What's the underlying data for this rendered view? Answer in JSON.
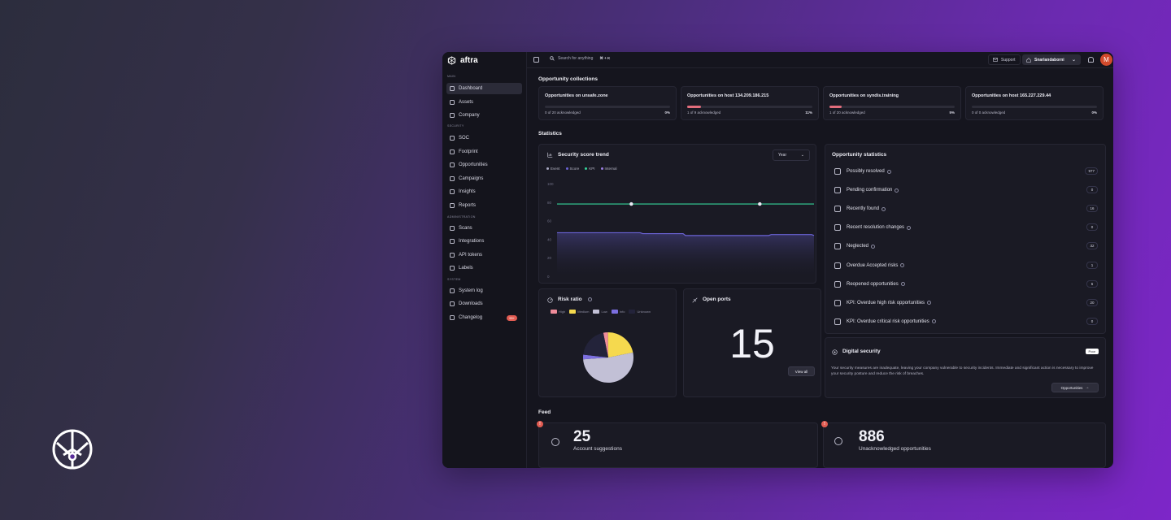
{
  "app": {
    "name": "aftra"
  },
  "colors": {
    "accent_red": "#e25c52",
    "kpi_green": "#34d399",
    "score_purple": "#6b63d6",
    "high": "#f08c9a",
    "medium": "#f5d94e",
    "low": "#c2c0d6",
    "info": "#7c6fe0"
  },
  "sidebar": {
    "sections": [
      {
        "label": "MAIN",
        "items": [
          {
            "label": "Dashboard",
            "icon": "dashboard-icon",
            "active": true
          },
          {
            "label": "Assets",
            "icon": "assets-icon"
          },
          {
            "label": "Company",
            "icon": "company-icon"
          }
        ]
      },
      {
        "label": "SECURITY",
        "items": [
          {
            "label": "SOC",
            "icon": "shield-icon"
          },
          {
            "label": "Footprint",
            "icon": "footprint-icon"
          },
          {
            "label": "Opportunities",
            "icon": "opportunities-icon"
          },
          {
            "label": "Campaigns",
            "icon": "campaigns-icon"
          },
          {
            "label": "Insights",
            "icon": "insights-icon"
          },
          {
            "label": "Reports",
            "icon": "reports-icon"
          }
        ]
      },
      {
        "label": "ADMINISTRATION",
        "items": [
          {
            "label": "Scans",
            "icon": "scans-icon"
          },
          {
            "label": "Integrations",
            "icon": "integrations-icon"
          },
          {
            "label": "API tokens",
            "icon": "key-icon"
          },
          {
            "label": "Labels",
            "icon": "label-icon"
          }
        ]
      },
      {
        "label": "SYSTEM",
        "items": [
          {
            "label": "System log",
            "icon": "log-icon"
          },
          {
            "label": "Downloads",
            "icon": "download-icon"
          },
          {
            "label": "Changelog",
            "icon": "changelog-icon",
            "badge": "99+"
          }
        ]
      }
    ]
  },
  "topbar": {
    "search_placeholder": "Search for anything",
    "shortcut": "⌘ + K",
    "support_label": "Support",
    "org_name": "Snarlandaborni",
    "avatar_initial": "M"
  },
  "collections": {
    "title": "Opportunity collections",
    "items": [
      {
        "title": "Opportunities on unsafe.zone",
        "ack": "0 of 20 acknowledged",
        "pct": "0%",
        "fill": 0
      },
      {
        "title": "Opportunities on host 134.209.186.215",
        "ack": "1 of 9 acknowledged",
        "pct": "11%",
        "fill": 0.11
      },
      {
        "title": "Opportunities on syndis.training",
        "ack": "1 of 20 acknowledged",
        "pct": "5%",
        "fill": 0.05
      },
      {
        "title": "Opportunities on host 165.227.229.44",
        "ack": "0 of 0 acknowledged",
        "pct": "0%",
        "fill": 0
      }
    ]
  },
  "statistics": {
    "title": "Statistics"
  },
  "score_trend": {
    "title": "Security score trend",
    "period": "Year",
    "legend": [
      "Event",
      "Score",
      "KPI",
      "Internal"
    ]
  },
  "chart_data": {
    "type": "line",
    "title": "Security score trend",
    "yticks": [
      "100",
      "80",
      "60",
      "40",
      "20",
      "0"
    ],
    "ylim": [
      0,
      100
    ],
    "series": [
      {
        "name": "KPI",
        "values": [
          78,
          78,
          78,
          78,
          78,
          78,
          78
        ]
      },
      {
        "name": "Score",
        "values": [
          47,
          47,
          46,
          44,
          44,
          45,
          44
        ]
      }
    ]
  },
  "opportunity_stats": {
    "title": "Opportunity statistics",
    "rows": [
      {
        "label": "Possibly resolved",
        "count": "977",
        "icon": "recycle-icon"
      },
      {
        "label": "Pending confirmation",
        "count": "0",
        "icon": "clock-icon"
      },
      {
        "label": "Recently found",
        "count": "16",
        "icon": "activity-icon"
      },
      {
        "label": "Recent resolution changes",
        "count": "0",
        "icon": "refresh-badge-icon"
      },
      {
        "label": "Neglected",
        "count": "32",
        "icon": "neglected-icon"
      },
      {
        "label": "Overdue Accepted risks",
        "count": "1",
        "icon": "warning-icon"
      },
      {
        "label": "Reopened opportunities",
        "count": "6",
        "icon": "reopen-icon"
      },
      {
        "label": "KPI: Overdue high risk opportunities",
        "count": "20",
        "icon": "kpi-high-icon"
      },
      {
        "label": "KPI: Overdue critical risk opportunities",
        "count": "0",
        "icon": "kpi-critical-icon"
      }
    ]
  },
  "risk_ratio": {
    "title": "Risk ratio",
    "legend": [
      "High",
      "Medium",
      "Low",
      "Info",
      "Unknown"
    ],
    "slices": [
      {
        "name": "High",
        "value": 3,
        "color": "#f08c9a"
      },
      {
        "name": "Medium",
        "value": 22,
        "color": "#f5d94e"
      },
      {
        "name": "Low",
        "value": 52,
        "color": "#c2c0d6"
      },
      {
        "name": "Info",
        "value": 3,
        "color": "#7c6fe0"
      },
      {
        "name": "Unknown",
        "value": 20,
        "color": "#23233a"
      }
    ]
  },
  "open_ports": {
    "title": "Open ports",
    "value": "15",
    "button": "View all"
  },
  "digital_security": {
    "title": "Digital security",
    "badge": "Poor",
    "text": "Your security measures are inadequate, leaving your company vulnerable to security incidents. Immediate and significant action is necessary to improve your security posture and reduce the risk of breaches.",
    "button": "Opportunities"
  },
  "feed": {
    "title": "Feed",
    "items": [
      {
        "value": "25",
        "label": "Account suggestions"
      },
      {
        "value": "886",
        "label": "Unacknowledged opportunities"
      }
    ]
  }
}
